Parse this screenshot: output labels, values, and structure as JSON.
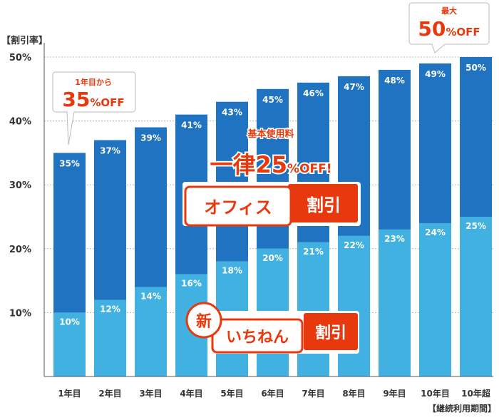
{
  "chart_data": {
    "type": "bar",
    "ylabel": "【割引率】",
    "xlabel": "【継続利用期間】",
    "ylim": [
      0,
      50
    ],
    "yticks": [
      "10%",
      "20%",
      "30%",
      "40%",
      "50%"
    ],
    "ytick_values": [
      10,
      20,
      30,
      40,
      50
    ],
    "categories": [
      "1年目",
      "2年目",
      "3年目",
      "4年目",
      "5年目",
      "6年目",
      "7年目",
      "8年目",
      "9年目",
      "10年目",
      "10年超"
    ],
    "series": [
      {
        "name": "新いちねん割引",
        "values": [
          10,
          12,
          14,
          16,
          18,
          20,
          21,
          22,
          23,
          24,
          25
        ],
        "labels": [
          "10%",
          "12%",
          "14%",
          "16%",
          "18%",
          "20%",
          "21%",
          "22%",
          "23%",
          "24%",
          "25%"
        ]
      },
      {
        "name": "オフィス割引",
        "totals": [
          35,
          37,
          39,
          41,
          43,
          45,
          46,
          47,
          48,
          49,
          50
        ],
        "labels": [
          "35%",
          "37%",
          "39%",
          "41%",
          "43%",
          "45%",
          "46%",
          "47%",
          "48%",
          "49%",
          "50%"
        ]
      }
    ],
    "grid": true,
    "colors": {
      "light": "#41b1e1",
      "dark": "#1f73c1",
      "accent": "#e8380d"
    }
  },
  "callouts": {
    "first_year": {
      "line1": "1年目から",
      "big": "35",
      "unit": "%",
      "off": "OFF"
    },
    "max": {
      "line1": "最大",
      "big": "50",
      "unit": "%",
      "off": "OFF"
    }
  },
  "banner": {
    "caption": "基本使用料",
    "main": "一律25",
    "unit": "%",
    "off": "OFF!"
  },
  "badges": {
    "office": {
      "name": "オフィス",
      "suffix": "割引"
    },
    "ichinen": {
      "prefix": "新",
      "name": "いちねん",
      "suffix": "割引"
    }
  }
}
